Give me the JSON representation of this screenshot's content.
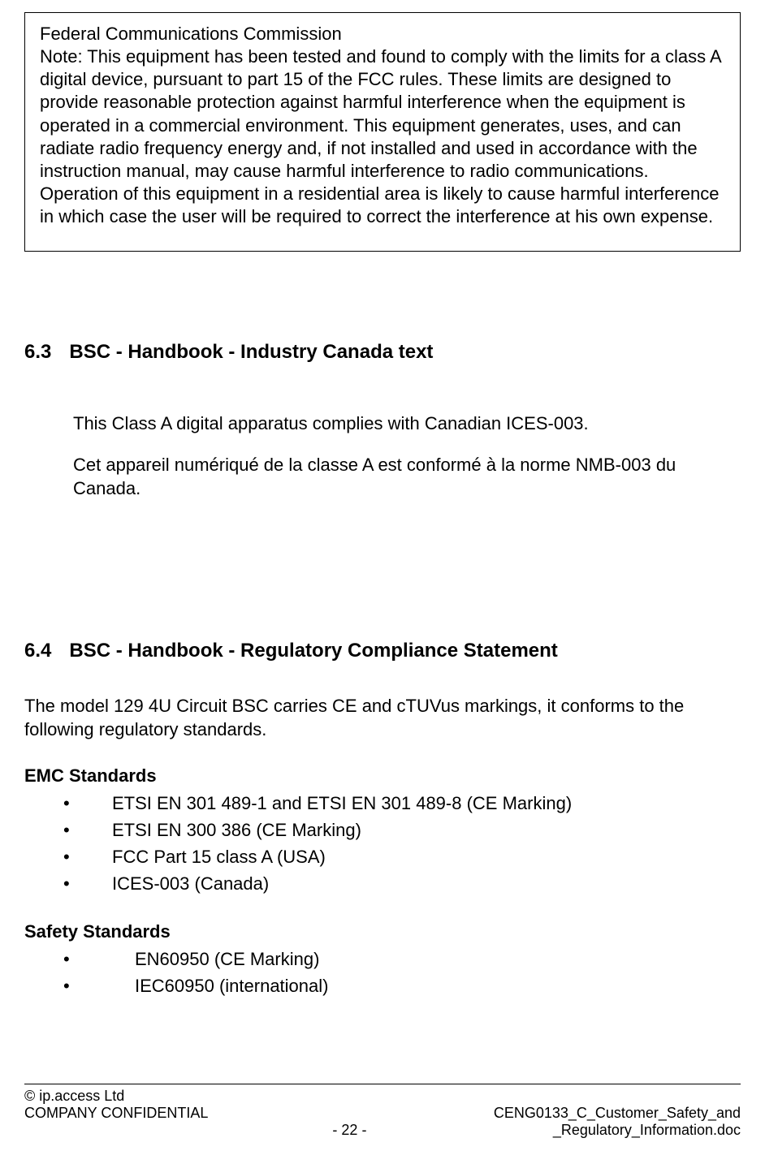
{
  "fcc_box": {
    "title": "Federal Communications Commission",
    "note": "Note: This equipment has been tested and found to comply with the limits for a class A digital device, pursuant to part 15 of the FCC rules. These limits are designed to provide reasonable protection against harmful interference when the equipment is operated in a commercial environment. This equipment generates, uses, and can radiate radio frequency energy and, if not installed and used in accordance with the instruction manual, may cause harmful interference to radio communications. Operation of this equipment in a residential area is likely to cause harmful interference in which case the user will be required to correct the interference at his own expense."
  },
  "section_63": {
    "number": "6.3",
    "title": "BSC - Handbook - Industry Canada text",
    "para1": "This Class A digital apparatus complies with Canadian ICES-003.",
    "para2": "Cet appareil numériqué de la classe A est conformé à la norme NMB-003 du Canada."
  },
  "section_64": {
    "number": "6.4",
    "title": "BSC - Handbook - Regulatory Compliance Statement",
    "intro": "The model 129 4U Circuit BSC carries CE and cTUVus markings, it conforms to the following regulatory standards.",
    "emc_heading": "EMC Standards",
    "emc_items": [
      "ETSI EN 301 489-1 and ETSI EN 301 489-8 (CE Marking)",
      "ETSI EN 300 386 (CE Marking)",
      "FCC Part 15 class A (USA)",
      "ICES-003 (Canada)"
    ],
    "safety_heading": "Safety Standards",
    "safety_items": [
      "EN60950 (CE Marking)",
      "IEC60950 (international)"
    ]
  },
  "footer": {
    "copyright": "© ip.access Ltd",
    "confidential": "COMPANY CONFIDENTIAL",
    "doc_line1": "CENG0133_C_Customer_Safety_and",
    "doc_line2": "_Regulatory_Information.doc",
    "page": "- 22 -"
  }
}
